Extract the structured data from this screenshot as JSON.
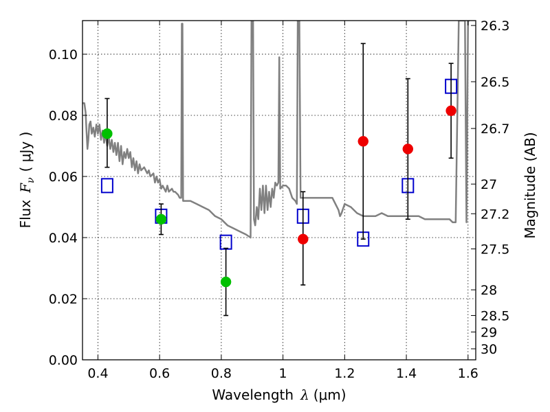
{
  "chart_data": {
    "type": "scatter",
    "title": "",
    "xlabel": {
      "pre": "Wavelength",
      "sym": "λ",
      "post": "(μm)"
    },
    "ylabel": {
      "pre": "Flux",
      "sym": "F",
      "sub": "ν",
      "post": "( μJy )"
    },
    "ylabel_right": "Magnitude (AB)",
    "xlim": [
      0.35,
      1.625
    ],
    "ylim": [
      0.0,
      0.111
    ],
    "grid": true,
    "x_ticks": [
      {
        "v": 0.4,
        "label": "0.4"
      },
      {
        "v": 0.6,
        "label": "0.6"
      },
      {
        "v": 0.8,
        "label": "0.8"
      },
      {
        "v": 1.0,
        "label": "1"
      },
      {
        "v": 1.2,
        "label": "1.2"
      },
      {
        "v": 1.4,
        "label": "1.4"
      },
      {
        "v": 1.6,
        "label": "1.6"
      }
    ],
    "y_ticks": [
      {
        "v": 0.0,
        "label": "0.00"
      },
      {
        "v": 0.02,
        "label": "0.02"
      },
      {
        "v": 0.04,
        "label": "0.04"
      },
      {
        "v": 0.06,
        "label": "0.06"
      },
      {
        "v": 0.08,
        "label": "0.08"
      },
      {
        "v": 0.1,
        "label": "0.10"
      }
    ],
    "right_ticks": [
      {
        "label": "26.3",
        "flux": 0.1094
      },
      {
        "label": "26.5",
        "flux": 0.091
      },
      {
        "label": "26.7",
        "flux": 0.0757
      },
      {
        "label": "27",
        "flux": 0.0575
      },
      {
        "label": "27.2",
        "flux": 0.0478
      },
      {
        "label": "27.5",
        "flux": 0.0363
      },
      {
        "label": "28",
        "flux": 0.0229
      },
      {
        "label": "28.5",
        "flux": 0.0145
      },
      {
        "label": "29",
        "flux": 0.0091
      },
      {
        "label": "30",
        "flux": 0.0036
      }
    ],
    "series": [
      {
        "kind": "model",
        "color": "#808080",
        "points": [
          [
            0.35,
            0.084
          ],
          [
            0.356,
            0.084
          ],
          [
            0.36,
            0.081
          ],
          [
            0.363,
            0.075
          ],
          [
            0.366,
            0.069
          ],
          [
            0.369,
            0.072
          ],
          [
            0.372,
            0.077
          ],
          [
            0.376,
            0.078
          ],
          [
            0.38,
            0.074
          ],
          [
            0.385,
            0.076
          ],
          [
            0.39,
            0.073
          ],
          [
            0.395,
            0.077
          ],
          [
            0.4,
            0.074
          ],
          [
            0.405,
            0.077
          ],
          [
            0.41,
            0.072
          ],
          [
            0.415,
            0.075
          ],
          [
            0.42,
            0.071
          ],
          [
            0.425,
            0.074
          ],
          [
            0.43,
            0.07
          ],
          [
            0.435,
            0.073
          ],
          [
            0.44,
            0.069
          ],
          [
            0.445,
            0.072
          ],
          [
            0.45,
            0.068
          ],
          [
            0.455,
            0.071
          ],
          [
            0.46,
            0.067
          ],
          [
            0.465,
            0.071
          ],
          [
            0.47,
            0.065
          ],
          [
            0.475,
            0.07
          ],
          [
            0.48,
            0.064
          ],
          [
            0.485,
            0.068
          ],
          [
            0.49,
            0.066
          ],
          [
            0.495,
            0.069
          ],
          [
            0.5,
            0.066
          ],
          [
            0.505,
            0.068
          ],
          [
            0.51,
            0.063
          ],
          [
            0.515,
            0.066
          ],
          [
            0.52,
            0.062
          ],
          [
            0.525,
            0.065
          ],
          [
            0.53,
            0.061
          ],
          [
            0.535,
            0.064
          ],
          [
            0.54,
            0.062
          ],
          [
            0.55,
            0.063
          ],
          [
            0.56,
            0.061
          ],
          [
            0.565,
            0.062
          ],
          [
            0.57,
            0.06
          ],
          [
            0.58,
            0.061
          ],
          [
            0.585,
            0.058
          ],
          [
            0.59,
            0.06
          ],
          [
            0.595,
            0.058
          ],
          [
            0.6,
            0.059
          ],
          [
            0.605,
            0.056
          ],
          [
            0.61,
            0.057
          ],
          [
            0.62,
            0.055
          ],
          [
            0.625,
            0.057
          ],
          [
            0.63,
            0.055
          ],
          [
            0.64,
            0.056
          ],
          [
            0.645,
            0.055
          ],
          [
            0.65,
            0.055
          ],
          [
            0.66,
            0.054
          ],
          [
            0.665,
            0.053
          ],
          [
            0.67,
            0.053
          ],
          [
            0.672,
            0.11
          ],
          [
            0.674,
            0.11
          ],
          [
            0.676,
            0.052
          ],
          [
            0.68,
            0.052
          ],
          [
            0.7,
            0.052
          ],
          [
            0.72,
            0.051
          ],
          [
            0.74,
            0.05
          ],
          [
            0.76,
            0.049
          ],
          [
            0.78,
            0.047
          ],
          [
            0.8,
            0.046
          ],
          [
            0.82,
            0.044
          ],
          [
            0.84,
            0.043
          ],
          [
            0.86,
            0.042
          ],
          [
            0.88,
            0.041
          ],
          [
            0.895,
            0.04
          ],
          [
            0.898,
            0.111
          ],
          [
            0.903,
            0.111
          ],
          [
            0.906,
            0.046
          ],
          [
            0.91,
            0.044
          ],
          [
            0.915,
            0.05
          ],
          [
            0.92,
            0.046
          ],
          [
            0.925,
            0.056
          ],
          [
            0.93,
            0.049
          ],
          [
            0.935,
            0.057
          ],
          [
            0.94,
            0.048
          ],
          [
            0.945,
            0.057
          ],
          [
            0.95,
            0.049
          ],
          [
            0.955,
            0.055
          ],
          [
            0.96,
            0.05
          ],
          [
            0.965,
            0.056
          ],
          [
            0.97,
            0.053
          ],
          [
            0.975,
            0.058
          ],
          [
            0.98,
            0.057
          ],
          [
            0.985,
            0.058
          ],
          [
            0.988,
            0.099
          ],
          [
            0.991,
            0.056
          ],
          [
            1.0,
            0.057
          ],
          [
            1.01,
            0.057
          ],
          [
            1.02,
            0.056
          ],
          [
            1.03,
            0.053
          ],
          [
            1.04,
            0.052
          ],
          [
            1.045,
            0.051
          ],
          [
            1.048,
            0.111
          ],
          [
            1.053,
            0.111
          ],
          [
            1.057,
            0.053
          ],
          [
            1.06,
            0.053
          ],
          [
            1.08,
            0.053
          ],
          [
            1.1,
            0.053
          ],
          [
            1.12,
            0.053
          ],
          [
            1.14,
            0.053
          ],
          [
            1.16,
            0.053
          ],
          [
            1.17,
            0.051
          ],
          [
            1.18,
            0.049
          ],
          [
            1.185,
            0.047
          ],
          [
            1.19,
            0.048
          ],
          [
            1.2,
            0.051
          ],
          [
            1.22,
            0.05
          ],
          [
            1.24,
            0.048
          ],
          [
            1.26,
            0.047
          ],
          [
            1.28,
            0.047
          ],
          [
            1.3,
            0.047
          ],
          [
            1.32,
            0.048
          ],
          [
            1.34,
            0.047
          ],
          [
            1.36,
            0.047
          ],
          [
            1.38,
            0.047
          ],
          [
            1.4,
            0.047
          ],
          [
            1.42,
            0.047
          ],
          [
            1.44,
            0.047
          ],
          [
            1.46,
            0.046
          ],
          [
            1.48,
            0.046
          ],
          [
            1.5,
            0.046
          ],
          [
            1.52,
            0.046
          ],
          [
            1.54,
            0.046
          ],
          [
            1.55,
            0.045
          ],
          [
            1.56,
            0.045
          ],
          [
            1.57,
            0.111
          ],
          [
            1.585,
            0.111
          ],
          [
            1.59,
            0.111
          ],
          [
            1.595,
            0.045
          ],
          [
            1.6,
            0.111
          ],
          [
            1.605,
            0.111
          ]
        ]
      },
      {
        "kind": "squares",
        "color": "#0000cc",
        "points": [
          [
            0.43,
            0.057
          ],
          [
            0.605,
            0.047
          ],
          [
            0.815,
            0.0385
          ],
          [
            1.065,
            0.047
          ],
          [
            1.26,
            0.0395
          ],
          [
            1.405,
            0.057
          ],
          [
            1.545,
            0.0895
          ]
        ]
      },
      {
        "kind": "errorbars",
        "color": "#000000",
        "points": [
          [
            0.43,
            0.063,
            0.0855
          ],
          [
            0.605,
            0.041,
            0.051
          ],
          [
            0.815,
            0.0145,
            0.0365
          ],
          [
            1.065,
            0.0245,
            0.055
          ],
          [
            1.26,
            0.0395,
            0.1035
          ],
          [
            1.405,
            0.046,
            0.092
          ],
          [
            1.545,
            0.066,
            0.097
          ]
        ]
      },
      {
        "kind": "green",
        "color": "#00c000",
        "points": [
          [
            0.43,
            0.074
          ],
          [
            0.605,
            0.046
          ],
          [
            0.815,
            0.0255
          ]
        ]
      },
      {
        "kind": "red",
        "color": "#ee0000",
        "points": [
          [
            1.065,
            0.0395
          ],
          [
            1.26,
            0.0715
          ],
          [
            1.405,
            0.069
          ],
          [
            1.545,
            0.0815
          ]
        ]
      }
    ]
  }
}
